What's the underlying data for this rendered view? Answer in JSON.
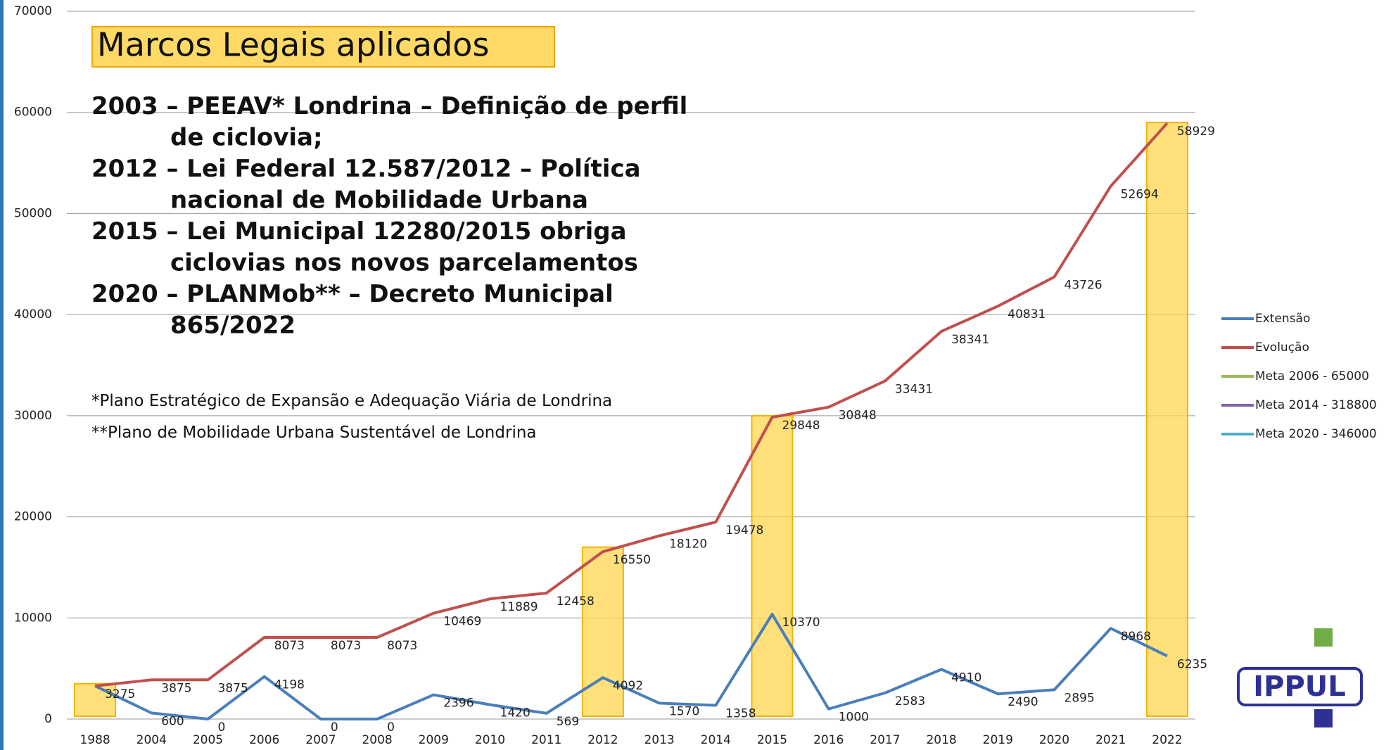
{
  "chart_data": {
    "type": "line",
    "title": "Marcos Legais aplicados",
    "notes": [
      [
        "2003 – PEEAV* Londrina – Definição de perfil",
        "de ciclovia;"
      ],
      [
        "2012 – Lei Federal 12.587/2012 – Política",
        "nacional de Mobilidade Urbana"
      ],
      [
        "2015 – Lei Municipal 12280/2015 obriga",
        "ciclovias nos novos parcelamentos"
      ],
      [
        "2020 – PLANMob** – Decreto Municipal",
        "865/2022"
      ]
    ],
    "footnotes": [
      "*Plano Estratégico de Expansão e Adequação Viária de Londrina",
      "**Plano de Mobilidade Urbana Sustentável de Londrina"
    ],
    "logo": "IPPUL",
    "categories": [
      "1988",
      "2004",
      "2005",
      "2006",
      "2007",
      "2008",
      "2009",
      "2010",
      "2011",
      "2012",
      "2013",
      "2014",
      "2015",
      "2016",
      "2017",
      "2018",
      "2019",
      "2020",
      "2021",
      "2022"
    ],
    "series": [
      {
        "name": "Extensão",
        "color": "#4a7ebb",
        "values": [
          3275,
          600,
          0,
          4198,
          0,
          0,
          2396,
          1420,
          569,
          4092,
          1570,
          1358,
          10370,
          1000,
          2583,
          4910,
          2490,
          2895,
          8968,
          6235
        ]
      },
      {
        "name": "Evolução",
        "color": "#c0504d",
        "values": [
          3275,
          3875,
          3875,
          8073,
          8073,
          8073,
          10469,
          11889,
          12458,
          16550,
          18120,
          19478,
          29848,
          30848,
          33431,
          38341,
          40831,
          43726,
          52694,
          58929
        ],
        "value_labels": [
          null,
          "3875",
          "3875",
          "8073",
          "8073",
          "8073",
          "10469",
          "11889",
          "12458",
          "16550",
          "18120",
          "19478",
          "29848",
          "30848",
          "33431",
          "38341",
          "40831",
          "43726",
          "52694",
          "58929"
        ]
      }
    ],
    "legend_only": [
      {
        "name": "Meta 2006 - 65000",
        "color": "#9bbb59"
      },
      {
        "name": "Meta 2014 - 318800",
        "color": "#8064a2"
      },
      {
        "name": "Meta 2020 - 346000",
        "color": "#4bacc6"
      }
    ],
    "highlights": {
      "categories": [
        "1988",
        "2012",
        "2015",
        "2022"
      ],
      "values": [
        3500,
        17000,
        30000,
        59000
      ],
      "color": "#ffd54f"
    },
    "ylim": [
      0,
      70000
    ],
    "yticks": [
      0,
      10000,
      20000,
      30000,
      40000,
      50000,
      60000,
      70000
    ],
    "grid": true,
    "legend": "right"
  }
}
